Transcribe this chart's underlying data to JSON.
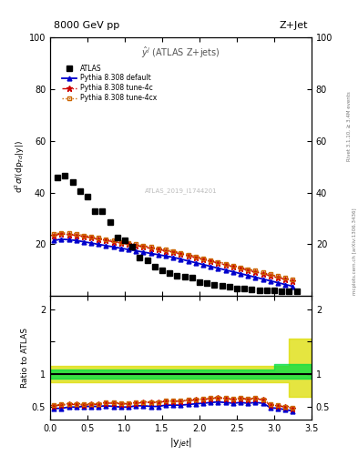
{
  "title_left": "8000 GeV pp",
  "title_right": "Z+Jet",
  "ylabel_main": "d$^2\\sigma$/(dp$_{Td}$|y|)",
  "ylabel_ratio": "Ratio to ATLAS",
  "xlabel": "|y$_{jet}$|",
  "annotation": "$\\hat{y}^{j}$ (ATLAS Z+jets)",
  "watermark": "ATLAS_2019_I1744201",
  "rivet_text": "Rivet 3.1.10, ≥ 3.4M events",
  "mcplots_text": "mcplots.cern.ch [arXiv:1306.3436]",
  "atlas_x": [
    0.1,
    0.2,
    0.3,
    0.4,
    0.5,
    0.6,
    0.7,
    0.8,
    0.9,
    1.0,
    1.1,
    1.2,
    1.3,
    1.4,
    1.5,
    1.6,
    1.7,
    1.8,
    1.9,
    2.0,
    2.1,
    2.2,
    2.3,
    2.4,
    2.5,
    2.6,
    2.7,
    2.8,
    2.9,
    3.0,
    3.1,
    3.2,
    3.3
  ],
  "atlas_y": [
    46.0,
    46.5,
    44.0,
    40.5,
    38.5,
    33.0,
    33.0,
    28.5,
    22.5,
    21.5,
    19.0,
    15.0,
    14.0,
    11.5,
    10.0,
    9.0,
    8.0,
    7.5,
    7.0,
    5.5,
    5.0,
    4.5,
    4.0,
    3.5,
    3.0,
    2.8,
    2.6,
    2.4,
    2.2,
    2.1,
    2.0,
    2.0,
    1.9
  ],
  "py_default_x": [
    0.05,
    0.15,
    0.25,
    0.35,
    0.45,
    0.55,
    0.65,
    0.75,
    0.85,
    0.95,
    1.05,
    1.15,
    1.25,
    1.35,
    1.45,
    1.55,
    1.65,
    1.75,
    1.85,
    1.95,
    2.05,
    2.15,
    2.25,
    2.35,
    2.45,
    2.55,
    2.65,
    2.75,
    2.85,
    2.95,
    3.05,
    3.15,
    3.25
  ],
  "py_default_y": [
    21.5,
    22.0,
    21.8,
    21.5,
    21.0,
    20.5,
    20.0,
    19.5,
    19.0,
    18.5,
    18.0,
    17.5,
    17.0,
    16.5,
    16.0,
    15.5,
    15.0,
    14.3,
    13.6,
    12.9,
    12.2,
    11.5,
    10.8,
    10.1,
    9.4,
    8.7,
    8.0,
    7.3,
    6.6,
    5.9,
    5.2,
    4.5,
    3.8
  ],
  "py_4c_x": [
    0.05,
    0.15,
    0.25,
    0.35,
    0.45,
    0.55,
    0.65,
    0.75,
    0.85,
    0.95,
    1.05,
    1.15,
    1.25,
    1.35,
    1.45,
    1.55,
    1.65,
    1.75,
    1.85,
    1.95,
    2.05,
    2.15,
    2.25,
    2.35,
    2.45,
    2.55,
    2.65,
    2.75,
    2.85,
    2.95,
    3.05,
    3.15,
    3.25
  ],
  "py_4c_y": [
    23.5,
    24.0,
    23.8,
    23.5,
    23.0,
    22.5,
    22.0,
    21.5,
    21.0,
    20.5,
    20.0,
    19.5,
    19.0,
    18.5,
    18.0,
    17.5,
    17.0,
    16.3,
    15.6,
    14.9,
    14.2,
    13.5,
    12.8,
    12.1,
    11.4,
    10.7,
    10.0,
    9.3,
    8.6,
    7.9,
    7.2,
    6.5,
    5.8
  ],
  "py_4cx_x": [
    0.05,
    0.15,
    0.25,
    0.35,
    0.45,
    0.55,
    0.65,
    0.75,
    0.85,
    0.95,
    1.05,
    1.15,
    1.25,
    1.35,
    1.45,
    1.55,
    1.65,
    1.75,
    1.85,
    1.95,
    2.05,
    2.15,
    2.25,
    2.35,
    2.45,
    2.55,
    2.65,
    2.75,
    2.85,
    2.95,
    3.05,
    3.15,
    3.25
  ],
  "py_4cx_y": [
    24.0,
    24.5,
    24.3,
    24.0,
    23.5,
    23.0,
    22.5,
    22.0,
    21.5,
    21.0,
    20.5,
    20.0,
    19.5,
    19.0,
    18.5,
    18.0,
    17.5,
    16.8,
    16.1,
    15.4,
    14.7,
    14.0,
    13.3,
    12.6,
    11.9,
    11.2,
    10.5,
    9.8,
    9.1,
    8.4,
    7.7,
    7.0,
    6.3
  ],
  "ratio_default_y": [
    0.47,
    0.47,
    0.49,
    0.49,
    0.5,
    0.5,
    0.5,
    0.51,
    0.5,
    0.49,
    0.49,
    0.51,
    0.51,
    0.5,
    0.5,
    0.52,
    0.52,
    0.52,
    0.53,
    0.54,
    0.55,
    0.56,
    0.57,
    0.56,
    0.55,
    0.56,
    0.55,
    0.56,
    0.55,
    0.48,
    0.47,
    0.45,
    0.43
  ],
  "ratio_4c_y": [
    0.51,
    0.52,
    0.53,
    0.53,
    0.52,
    0.53,
    0.53,
    0.55,
    0.55,
    0.54,
    0.54,
    0.55,
    0.56,
    0.56,
    0.56,
    0.58,
    0.58,
    0.58,
    0.59,
    0.6,
    0.61,
    0.62,
    0.63,
    0.62,
    0.61,
    0.62,
    0.61,
    0.62,
    0.6,
    0.52,
    0.51,
    0.49,
    0.47
  ],
  "ratio_4cx_y": [
    0.52,
    0.53,
    0.54,
    0.54,
    0.53,
    0.54,
    0.54,
    0.56,
    0.56,
    0.55,
    0.55,
    0.56,
    0.57,
    0.57,
    0.57,
    0.59,
    0.59,
    0.59,
    0.6,
    0.61,
    0.62,
    0.63,
    0.64,
    0.63,
    0.62,
    0.63,
    0.62,
    0.63,
    0.61,
    0.53,
    0.52,
    0.5,
    0.48
  ],
  "band_x_edges": [
    0.0,
    0.5,
    1.0,
    1.5,
    2.0,
    2.5,
    3.0,
    3.2,
    3.5
  ],
  "green_low": [
    0.93,
    0.93,
    0.93,
    0.93,
    0.93,
    0.93,
    0.93,
    0.93,
    0.93
  ],
  "green_high": [
    1.07,
    1.07,
    1.07,
    1.07,
    1.07,
    1.07,
    1.15,
    1.15,
    1.15
  ],
  "yellow_low": [
    0.87,
    0.87,
    0.87,
    0.87,
    0.87,
    0.87,
    0.87,
    0.65,
    0.65
  ],
  "yellow_high": [
    1.13,
    1.13,
    1.13,
    1.13,
    1.13,
    1.13,
    1.13,
    1.55,
    1.55
  ],
  "ylim_main": [
    0,
    100
  ],
  "ylim_ratio": [
    0.3,
    2.2
  ],
  "xlim": [
    0,
    3.5
  ],
  "yticks_main": [
    20,
    40,
    60,
    80,
    100
  ],
  "yticks_ratio": [
    0.5,
    1.0,
    1.5,
    2.0
  ],
  "color_default": "#0000cc",
  "color_4c": "#cc0000",
  "color_4cx": "#cc6600",
  "color_atlas": "#000000",
  "color_green": "#00dd44",
  "color_yellow": "#dddd00"
}
